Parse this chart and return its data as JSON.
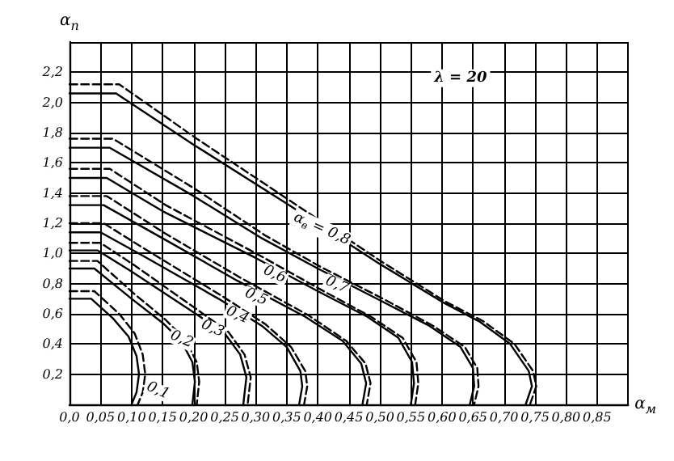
{
  "chart_data": {
    "type": "line",
    "xlabel": "α$_{м}$",
    "ylabel": "α$_{п}$",
    "xlim": [
      0,
      0.9
    ],
    "ylim": [
      0,
      2.4
    ],
    "xticks": [
      {
        "value": 0,
        "label": "0,0"
      },
      {
        "value": 0.05,
        "label": "0,05"
      },
      {
        "value": 0.1,
        "label": "0,10"
      },
      {
        "value": 0.15,
        "label": "0,15"
      },
      {
        "value": 0.2,
        "label": "0,20"
      },
      {
        "value": 0.25,
        "label": "0,25"
      },
      {
        "value": 0.3,
        "label": "0,30"
      },
      {
        "value": 0.35,
        "label": "0,35"
      },
      {
        "value": 0.4,
        "label": "0,40"
      },
      {
        "value": 0.45,
        "label": "0,45"
      },
      {
        "value": 0.5,
        "label": "0,50"
      },
      {
        "value": 0.55,
        "label": "0,55"
      },
      {
        "value": 0.6,
        "label": "0,60"
      },
      {
        "value": 0.65,
        "label": "0,65"
      },
      {
        "value": 0.7,
        "label": "0,70"
      },
      {
        "value": 0.75,
        "label": "0,75"
      },
      {
        "value": 0.8,
        "label": "0,80"
      },
      {
        "value": 0.85,
        "label": "0,85"
      },
      {
        "value": 0.9,
        "label": null
      }
    ],
    "yticks": [
      {
        "value": 0,
        "label": null
      },
      {
        "value": 0.2,
        "label": "0,2"
      },
      {
        "value": 0.4,
        "label": "0,4"
      },
      {
        "value": 0.6,
        "label": "0,6"
      },
      {
        "value": 0.8,
        "label": "0,8"
      },
      {
        "value": 1.0,
        "label": "1,0"
      },
      {
        "value": 1.2,
        "label": "1,2"
      },
      {
        "value": 1.4,
        "label": "1,4"
      },
      {
        "value": 1.6,
        "label": "1,6"
      },
      {
        "value": 1.8,
        "label": "1,8"
      },
      {
        "value": 2.0,
        "label": "2,0"
      },
      {
        "value": 2.2,
        "label": "2,2"
      },
      {
        "value": 2.4,
        "label": null
      }
    ],
    "grid": true,
    "marker": "none",
    "series": [
      {
        "color": "#000000",
        "line_style": "solid",
        "x": [
          0,
          0.035,
          0.07,
          0.095,
          0.108,
          0.112,
          0.108,
          0.1
        ],
        "values": [
          0.7,
          0.7,
          0.57,
          0.45,
          0.32,
          0.2,
          0.08,
          0
        ]
      },
      {
        "color": "#000000",
        "line_style": "dashed",
        "x": [
          0,
          0.04,
          0.08,
          0.105,
          0.118,
          0.122,
          0.118,
          0.11
        ],
        "values": [
          0.75,
          0.75,
          0.6,
          0.47,
          0.33,
          0.2,
          0.08,
          0
        ]
      },
      {
        "color": "#000000",
        "line_style": "solid",
        "x": [
          0,
          0.04,
          0.1,
          0.15,
          0.18,
          0.198,
          0.202,
          0.198
        ],
        "values": [
          0.9,
          0.9,
          0.7,
          0.54,
          0.42,
          0.28,
          0.15,
          0
        ]
      },
      {
        "color": "#000000",
        "line_style": "dashed",
        "x": [
          0,
          0.045,
          0.105,
          0.155,
          0.186,
          0.205,
          0.209,
          0.205
        ],
        "values": [
          0.95,
          0.95,
          0.73,
          0.56,
          0.43,
          0.28,
          0.15,
          0
        ]
      },
      {
        "color": "#000000",
        "line_style": "solid",
        "x": [
          0,
          0.045,
          0.1,
          0.2,
          0.25,
          0.275,
          0.285,
          0.28
        ],
        "values": [
          1.02,
          1.02,
          0.88,
          0.61,
          0.47,
          0.33,
          0.18,
          0
        ]
      },
      {
        "color": "#000000",
        "line_style": "dashed",
        "x": [
          0,
          0.05,
          0.105,
          0.205,
          0.256,
          0.282,
          0.292,
          0.287
        ],
        "values": [
          1.07,
          1.07,
          0.92,
          0.63,
          0.48,
          0.33,
          0.18,
          0
        ]
      },
      {
        "color": "#000000",
        "line_style": "solid",
        "x": [
          0,
          0.05,
          0.12,
          0.24,
          0.31,
          0.35,
          0.372,
          0.375,
          0.37
        ],
        "values": [
          1.14,
          1.14,
          0.98,
          0.7,
          0.52,
          0.38,
          0.22,
          0.12,
          0
        ]
      },
      {
        "color": "#000000",
        "line_style": "dashed",
        "x": [
          0,
          0.055,
          0.125,
          0.245,
          0.316,
          0.357,
          0.38,
          0.383,
          0.378
        ],
        "values": [
          1.2,
          1.2,
          1.02,
          0.72,
          0.53,
          0.38,
          0.22,
          0.12,
          0
        ]
      },
      {
        "color": "#000000",
        "line_style": "solid",
        "x": [
          0,
          0.055,
          0.15,
          0.27,
          0.38,
          0.44,
          0.47,
          0.478,
          0.472
        ],
        "values": [
          1.32,
          1.32,
          1.1,
          0.82,
          0.58,
          0.42,
          0.27,
          0.14,
          0
        ]
      },
      {
        "color": "#000000",
        "line_style": "dashed",
        "x": [
          0,
          0.06,
          0.155,
          0.275,
          0.385,
          0.446,
          0.477,
          0.485,
          0.479
        ],
        "values": [
          1.38,
          1.38,
          1.13,
          0.84,
          0.59,
          0.42,
          0.27,
          0.14,
          0
        ]
      },
      {
        "color": "#000000",
        "line_style": "solid",
        "x": [
          0,
          0.06,
          0.15,
          0.3,
          0.4,
          0.48,
          0.53,
          0.552,
          0.555,
          0.55
        ],
        "values": [
          1.5,
          1.5,
          1.28,
          0.97,
          0.75,
          0.58,
          0.44,
          0.28,
          0.14,
          0
        ]
      },
      {
        "color": "#000000",
        "line_style": "dashed",
        "x": [
          0,
          0.065,
          0.155,
          0.305,
          0.405,
          0.486,
          0.537,
          0.559,
          0.562,
          0.557
        ],
        "values": [
          1.56,
          1.56,
          1.32,
          0.99,
          0.76,
          0.58,
          0.44,
          0.28,
          0.14,
          0
        ]
      },
      {
        "color": "#000000",
        "line_style": "solid",
        "x": [
          0,
          0.065,
          0.2,
          0.31,
          0.4,
          0.5,
          0.58,
          0.63,
          0.65,
          0.652,
          0.645
        ],
        "values": [
          1.7,
          1.7,
          1.38,
          1.1,
          0.9,
          0.69,
          0.52,
          0.38,
          0.24,
          0.12,
          0
        ]
      },
      {
        "color": "#000000",
        "line_style": "dashed",
        "x": [
          0,
          0.07,
          0.205,
          0.315,
          0.405,
          0.505,
          0.586,
          0.637,
          0.657,
          0.659,
          0.652
        ],
        "values": [
          1.76,
          1.76,
          1.42,
          1.12,
          0.91,
          0.7,
          0.52,
          0.38,
          0.24,
          0.12,
          0
        ]
      },
      {
        "color": "#000000",
        "line_style": "solid",
        "x": [
          0,
          0.075,
          0.2,
          0.35,
          0.5,
          0.6,
          0.66,
          0.71,
          0.74,
          0.745,
          0.735
        ],
        "values": [
          2.06,
          2.06,
          1.72,
          1.33,
          0.93,
          0.68,
          0.55,
          0.4,
          0.22,
          0.12,
          0
        ]
      },
      {
        "color": "#000000",
        "line_style": "dashed",
        "x": [
          0,
          0.08,
          0.205,
          0.355,
          0.505,
          0.606,
          0.667,
          0.717,
          0.747,
          0.752,
          0.742
        ],
        "values": [
          2.12,
          2.12,
          1.76,
          1.35,
          0.94,
          0.68,
          0.55,
          0.4,
          0.22,
          0.12,
          0
        ]
      }
    ],
    "annotations": [
      {
        "text": "α$_{в}$ = 0,8",
        "x": 0.35,
        "y": 1.33
      },
      {
        "text": "0,7",
        "x": 0.4,
        "y": 0.9
      },
      {
        "text": "0,6",
        "x": 0.3,
        "y": 0.97
      },
      {
        "text": "0,5",
        "x": 0.27,
        "y": 0.82
      },
      {
        "text": "0,4",
        "x": 0.24,
        "y": 0.7
      },
      {
        "text": "0,3",
        "x": 0.2,
        "y": 0.61
      },
      {
        "text": "0,2",
        "x": 0.15,
        "y": 0.54
      },
      {
        "text": "0,1",
        "x": 0.112,
        "y": 0.2
      },
      "λ = 20"
    ]
  }
}
